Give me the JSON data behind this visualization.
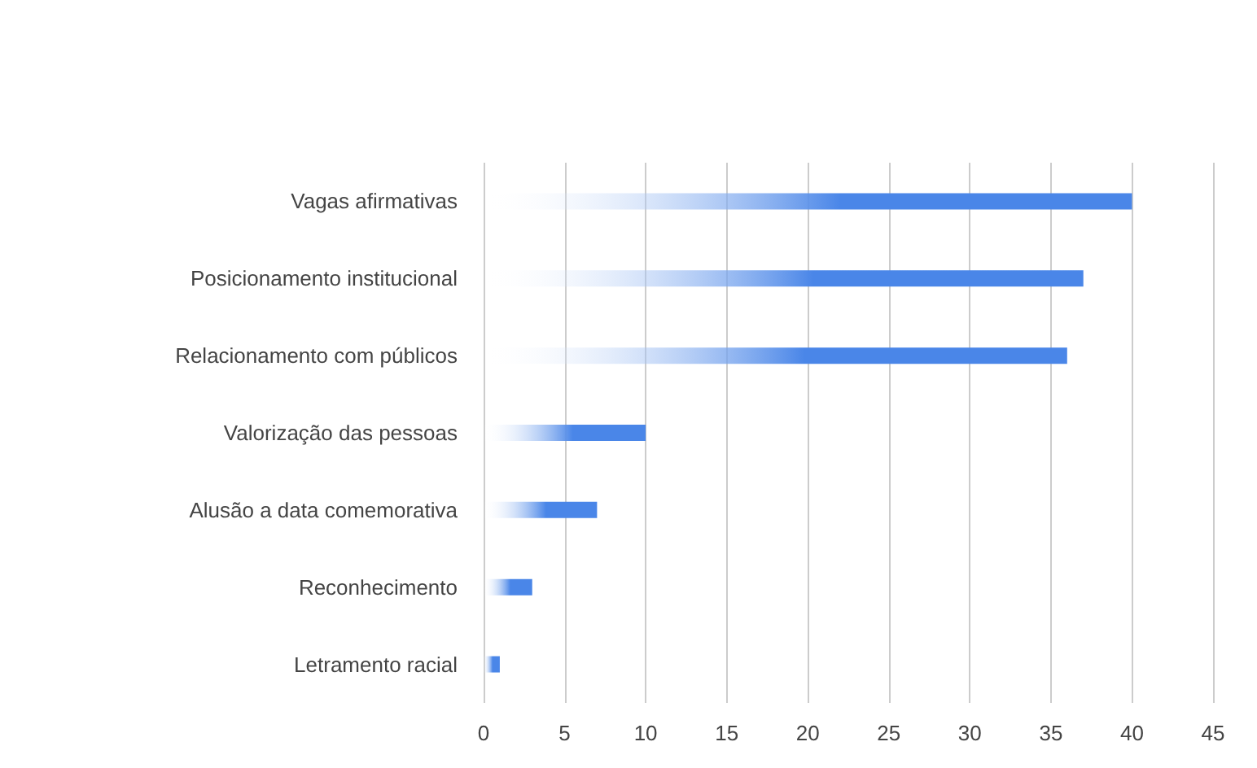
{
  "chart_data": {
    "type": "bar",
    "orientation": "horizontal",
    "categories": [
      "Vagas afirmativas",
      "Posicionamento institucional",
      "Relacionamento com públicos",
      "Valorização das pessoas",
      "Alusão a data comemorativa",
      "Reconhecimento",
      "Letramento racial"
    ],
    "values": [
      40,
      37,
      36,
      10,
      7,
      3,
      1
    ],
    "color": "#4a86e8",
    "xlim": [
      0,
      45
    ],
    "xticks": [
      0,
      5,
      10,
      15,
      20,
      25,
      30,
      35,
      40,
      45
    ],
    "grid": "x"
  }
}
